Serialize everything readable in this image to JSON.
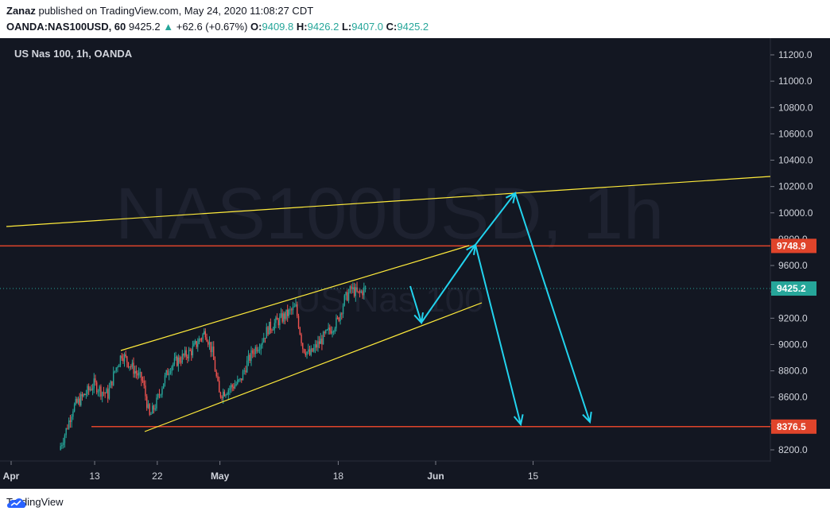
{
  "header": {
    "author": "Zanaz",
    "published": "published on TradingView.com, May 24, 2020 11:08:27 CDT",
    "symbol": "OANDA:NAS100USD, 60",
    "last": "9425.2",
    "change": "+62.6 (+0.67%)",
    "o_label": "O:",
    "o": "9409.8",
    "h_label": "H:",
    "h": "9426.2",
    "l_label": "L:",
    "l": "9407.0",
    "c_label": "C:",
    "c": "9425.2"
  },
  "chart_legend": "US Nas 100, 1h, OANDA",
  "watermark": {
    "big": "NAS100USD, 1h",
    "small": "US Nas 100"
  },
  "footer": {
    "brand": "TradingView"
  },
  "colors": {
    "background": "#131722",
    "up": "#26a69a",
    "down": "#ef5350",
    "trendline": "#ffeb3b",
    "level": "#e0442b",
    "arrow": "#22d3ee",
    "grid": "#1e222d",
    "text": "#d1d4dc"
  },
  "chart_data": {
    "type": "candlestick",
    "title": "US Nas 100, 1h, OANDA",
    "x_ticks": [
      "Apr",
      "13",
      "22",
      "May",
      "18",
      "Jun",
      "15"
    ],
    "y_ticks": [
      "8200.0",
      "8400.0",
      "8600.0",
      "8800.0",
      "9000.0",
      "9200.0",
      "9400.0",
      "9600.0",
      "9800.0",
      "10000.0",
      "10200.0",
      "10400.0",
      "10600.0",
      "10800.0",
      "11000.0",
      "11200.0"
    ],
    "ylim": [
      8100,
      11300
    ],
    "price_labels": [
      {
        "value": 9748.9,
        "text": "9748.9",
        "kind": "level"
      },
      {
        "value": 9425.2,
        "text": "9425.2",
        "kind": "last"
      },
      {
        "value": 8376.5,
        "text": "8376.5",
        "kind": "level"
      }
    ],
    "trend_closes_anchor": [
      [
        "2020-04-08",
        8200
      ],
      [
        "2020-04-09",
        8350
      ],
      [
        "2020-04-10",
        8520
      ],
      [
        "2020-04-13",
        8700
      ],
      [
        "2020-04-14",
        8650
      ],
      [
        "2020-04-15",
        8620
      ],
      [
        "2020-04-16",
        8800
      ],
      [
        "2020-04-17",
        8930
      ],
      [
        "2020-04-20",
        8720
      ],
      [
        "2020-04-21",
        8450
      ],
      [
        "2020-04-22",
        8560
      ],
      [
        "2020-04-23",
        8720
      ],
      [
        "2020-04-24",
        8840
      ],
      [
        "2020-04-27",
        8950
      ],
      [
        "2020-04-29",
        9100
      ],
      [
        "2020-04-30",
        8940
      ],
      [
        "2020-05-01",
        8620
      ],
      [
        "2020-05-04",
        8720
      ],
      [
        "2020-05-05",
        8860
      ],
      [
        "2020-05-06",
        8960
      ],
      [
        "2020-05-07",
        9020
      ],
      [
        "2020-05-08",
        9120
      ],
      [
        "2020-05-11",
        9240
      ],
      [
        "2020-05-12",
        9280
      ],
      [
        "2020-05-13",
        8980
      ],
      [
        "2020-05-14",
        8920
      ],
      [
        "2020-05-15",
        8990
      ],
      [
        "2020-05-18",
        9180
      ],
      [
        "2020-05-19",
        9340
      ],
      [
        "2020-05-20",
        9420
      ],
      [
        "2020-05-21",
        9380
      ],
      [
        "2020-05-22",
        9425
      ]
    ]
  }
}
